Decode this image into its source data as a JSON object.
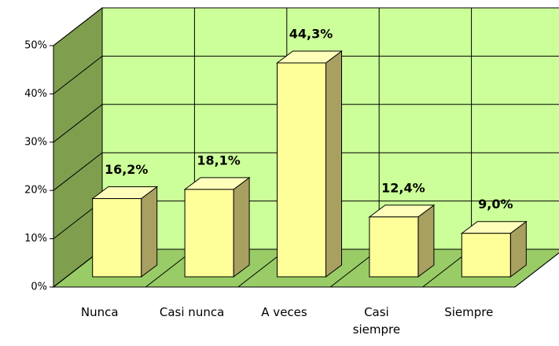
{
  "chart_data": {
    "type": "bar3d",
    "categories": [
      "Nunca",
      "Casi nunca",
      "A veces",
      "Casi\nsiempre",
      "Siempre"
    ],
    "values": [
      16.2,
      18.1,
      44.3,
      12.4,
      9.0
    ],
    "value_labels": [
      "16,2%",
      "18,1%",
      "44,3%",
      "12,4%",
      "9,0%"
    ],
    "color": "#ffff99",
    "ylim": [
      0,
      50
    ],
    "yticks": [
      {
        "value": 0,
        "label": "0%"
      },
      {
        "value": 10,
        "label": "10%"
      },
      {
        "value": 20,
        "label": "20%"
      },
      {
        "value": 30,
        "label": "30%"
      },
      {
        "value": 40,
        "label": "40%"
      },
      {
        "value": 50,
        "label": "50%"
      }
    ],
    "grid": true
  }
}
